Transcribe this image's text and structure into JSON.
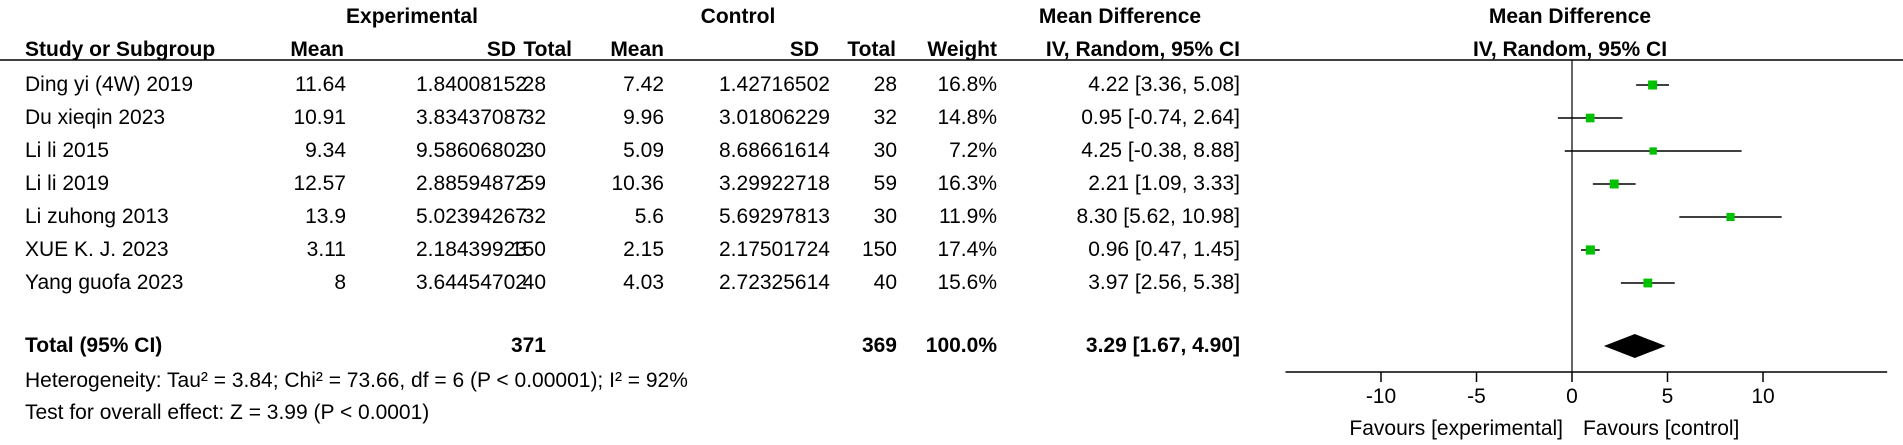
{
  "header": {
    "experimental": "Experimental",
    "control": "Control",
    "md_group": "Mean Difference",
    "plot_group": "Mean Difference",
    "study": "Study or Subgroup",
    "mean": "Mean",
    "sd": "SD",
    "total": "Total",
    "mean2": "Mean",
    "sd2": "SD",
    "total2": "Total",
    "weight": "Weight",
    "method": "IV, Random, 95% CI",
    "plot_method": "IV, Random, 95% CI"
  },
  "studies": [
    {
      "name": "Ding yi (4W) 2019",
      "exp_mean": "11.64",
      "exp_sd": "1.84008152",
      "exp_total": "28",
      "ctl_mean": "7.42",
      "ctl_sd": "1.42716502",
      "ctl_total": "28",
      "weight": "16.8%",
      "ci_text": "4.22 [3.36, 5.08]"
    },
    {
      "name": "Du xieqin 2023",
      "exp_mean": "10.91",
      "exp_sd": "3.83437087",
      "exp_total": "32",
      "ctl_mean": "9.96",
      "ctl_sd": "3.01806229",
      "ctl_total": "32",
      "weight": "14.8%",
      "ci_text": "0.95 [-0.74, 2.64]"
    },
    {
      "name": "Li li 2015",
      "exp_mean": "9.34",
      "exp_sd": "9.58606802",
      "exp_total": "30",
      "ctl_mean": "5.09",
      "ctl_sd": "8.68661614",
      "ctl_total": "30",
      "weight": "7.2%",
      "ci_text": "4.25 [-0.38, 8.88]"
    },
    {
      "name": "Li li 2019",
      "exp_mean": "12.57",
      "exp_sd": "2.88594872",
      "exp_total": "59",
      "ctl_mean": "10.36",
      "ctl_sd": "3.29922718",
      "ctl_total": "59",
      "weight": "16.3%",
      "ci_text": "2.21 [1.09, 3.33]"
    },
    {
      "name": "Li zuhong 2013",
      "exp_mean": "13.9",
      "exp_sd": "5.02394267",
      "exp_total": "32",
      "ctl_mean": "5.6",
      "ctl_sd": "5.69297813",
      "ctl_total": "30",
      "weight": "11.9%",
      "ci_text": "8.30 [5.62, 10.98]"
    },
    {
      "name": "XUE K. J. 2023",
      "exp_mean": "3.11",
      "exp_sd": "2.18439923",
      "exp_total": "150",
      "ctl_mean": "2.15",
      "ctl_sd": "2.17501724",
      "ctl_total": "150",
      "weight": "17.4%",
      "ci_text": "0.96 [0.47, 1.45]"
    },
    {
      "name": "Yang guofa 2023",
      "exp_mean": "8",
      "exp_sd": "3.64454702",
      "exp_total": "40",
      "ctl_mean": "4.03",
      "ctl_sd": "2.72325614",
      "ctl_total": "40",
      "weight": "15.6%",
      "ci_text": "3.97 [2.56, 5.38]"
    }
  ],
  "total": {
    "label": "Total (95% CI)",
    "exp_total": "371",
    "ctl_total": "369",
    "weight": "100.0%",
    "ci_text": "3.29 [1.67, 4.90]"
  },
  "heterogeneity": "Heterogeneity: Tau² = 3.84; Chi² = 73.66, df = 6 (P < 0.00001); I² = 92%",
  "overall_effect": "Test for overall effect: Z = 3.99 (P < 0.0001)",
  "axis": {
    "favours_left": "Favours [experimental]",
    "favours_right": "Favours [control]"
  },
  "colors": {
    "marker": "#00c000",
    "diamond": "#000000",
    "line": "#000000"
  },
  "chart_data": {
    "type": "forest",
    "xlim": [
      -15,
      16.5
    ],
    "ticks": [
      -10,
      -5,
      0,
      5,
      10
    ],
    "reference_line": 0,
    "studies": [
      {
        "name": "Ding yi (4W) 2019",
        "estimate": 4.22,
        "lower": 3.36,
        "upper": 5.08,
        "weight": 16.8
      },
      {
        "name": "Du xieqin 2023",
        "estimate": 0.95,
        "lower": -0.74,
        "upper": 2.64,
        "weight": 14.8
      },
      {
        "name": "Li li 2015",
        "estimate": 4.25,
        "lower": -0.38,
        "upper": 8.88,
        "weight": 7.2
      },
      {
        "name": "Li li 2019",
        "estimate": 2.21,
        "lower": 1.09,
        "upper": 3.33,
        "weight": 16.3
      },
      {
        "name": "Li zuhong 2013",
        "estimate": 8.3,
        "lower": 5.62,
        "upper": 10.98,
        "weight": 11.9
      },
      {
        "name": "XUE K. J. 2023",
        "estimate": 0.96,
        "lower": 0.47,
        "upper": 1.45,
        "weight": 17.4
      },
      {
        "name": "Yang guofa 2023",
        "estimate": 3.97,
        "lower": 2.56,
        "upper": 5.38,
        "weight": 15.6
      }
    ],
    "pooled": {
      "estimate": 3.29,
      "lower": 1.67,
      "upper": 4.9
    }
  }
}
